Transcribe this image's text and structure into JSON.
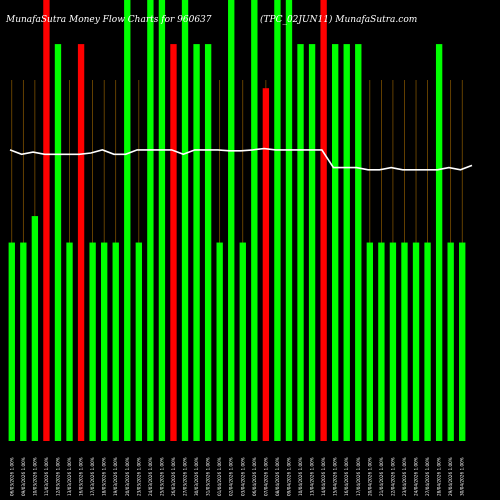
{
  "chart_data": {
    "type": "bar",
    "title_left": "MunafaSutra  Money Flow  Charts for 960637",
    "title_right": "(TPC_02JUN11) MunafaSutra.com",
    "ylim": [
      0,
      100
    ],
    "colors": {
      "background": "#000000",
      "up": "#00ff00",
      "down": "#ff0000",
      "line": "#ffffff",
      "grid": "#8b5a00"
    },
    "categories": [
      "06/03/2026 1.00%",
      "09/03/2026 1.00%",
      "10/03/2026 1.00%",
      "11/03/2026 1.00%",
      "12/03/2026 1.00%",
      "13/03/2026 1.00%",
      "16/03/2026 1.00%",
      "17/03/2026 1.00%",
      "18/03/2026 1.00%",
      "19/03/2026 1.00%",
      "20/03/2026 1.00%",
      "23/03/2026 1.00%",
      "24/03/2026 1.00%",
      "25/03/2026 1.00%",
      "26/03/2026 1.00%",
      "27/03/2026 1.00%",
      "30/03/2026 1.00%",
      "31/03/2026 1.00%",
      "01/04/2026 1.00%",
      "02/04/2026 1.00%",
      "03/04/2026 1.00%",
      "06/04/2026 1.00%",
      "07/04/2026 1.00%",
      "08/04/2026 1.00%",
      "09/04/2026 1.00%",
      "10/04/2026 1.00%",
      "13/04/2026 1.00%",
      "14/04/2026 1.00%",
      "15/04/2026 1.00%",
      "16/04/2026 1.00%",
      "17/04/2026 1.00%",
      "20/04/2026 1.00%",
      "21/04/2026 1.00%",
      "22/04/2026 1.00%",
      "23/04/2026 1.00%",
      "24/04/2026 1.00%",
      "27/04/2026 1.00%",
      "28/04/2026 1.00%",
      "29/04/2026 1.00%",
      "30/04/2026 1.00%"
    ],
    "bars": [
      {
        "value": 45,
        "color": "up"
      },
      {
        "value": 45,
        "color": "up"
      },
      {
        "value": 51,
        "color": "up"
      },
      {
        "value": 100,
        "color": "down"
      },
      {
        "value": 90,
        "color": "up"
      },
      {
        "value": 45,
        "color": "up"
      },
      {
        "value": 90,
        "color": "down"
      },
      {
        "value": 45,
        "color": "up"
      },
      {
        "value": 45,
        "color": "up"
      },
      {
        "value": 45,
        "color": "up"
      },
      {
        "value": 100,
        "color": "up"
      },
      {
        "value": 45,
        "color": "up"
      },
      {
        "value": 100,
        "color": "up"
      },
      {
        "value": 100,
        "color": "up"
      },
      {
        "value": 90,
        "color": "down"
      },
      {
        "value": 100,
        "color": "up"
      },
      {
        "value": 90,
        "color": "up"
      },
      {
        "value": 90,
        "color": "up"
      },
      {
        "value": 45,
        "color": "up"
      },
      {
        "value": 100,
        "color": "up"
      },
      {
        "value": 45,
        "color": "up"
      },
      {
        "value": 100,
        "color": "up"
      },
      {
        "value": 80,
        "color": "down"
      },
      {
        "value": 100,
        "color": "up"
      },
      {
        "value": 100,
        "color": "up"
      },
      {
        "value": 90,
        "color": "up"
      },
      {
        "value": 90,
        "color": "up"
      },
      {
        "value": 100,
        "color": "down"
      },
      {
        "value": 90,
        "color": "up"
      },
      {
        "value": 90,
        "color": "up"
      },
      {
        "value": 90,
        "color": "up"
      },
      {
        "value": 45,
        "color": "up"
      },
      {
        "value": 45,
        "color": "up"
      },
      {
        "value": 45,
        "color": "up"
      },
      {
        "value": 45,
        "color": "up"
      },
      {
        "value": 45,
        "color": "up"
      },
      {
        "value": 45,
        "color": "up"
      },
      {
        "value": 90,
        "color": "up"
      },
      {
        "value": 45,
        "color": "up"
      },
      {
        "value": 45,
        "color": "up"
      }
    ],
    "line": [
      66,
      65,
      65.5,
      65,
      65,
      65,
      65,
      65.3,
      66,
      65,
      65,
      66,
      66,
      66,
      66,
      65,
      66,
      66,
      66,
      65.8,
      65.8,
      66,
      66.3,
      66,
      66,
      66,
      66,
      66,
      62,
      62,
      62,
      61.5,
      61.5,
      62,
      61.5,
      61.5,
      61.5,
      61.5,
      62,
      61.5,
      62.5
    ],
    "line_x_range": [
      0,
      40
    ],
    "vertical_gridlines": true
  }
}
